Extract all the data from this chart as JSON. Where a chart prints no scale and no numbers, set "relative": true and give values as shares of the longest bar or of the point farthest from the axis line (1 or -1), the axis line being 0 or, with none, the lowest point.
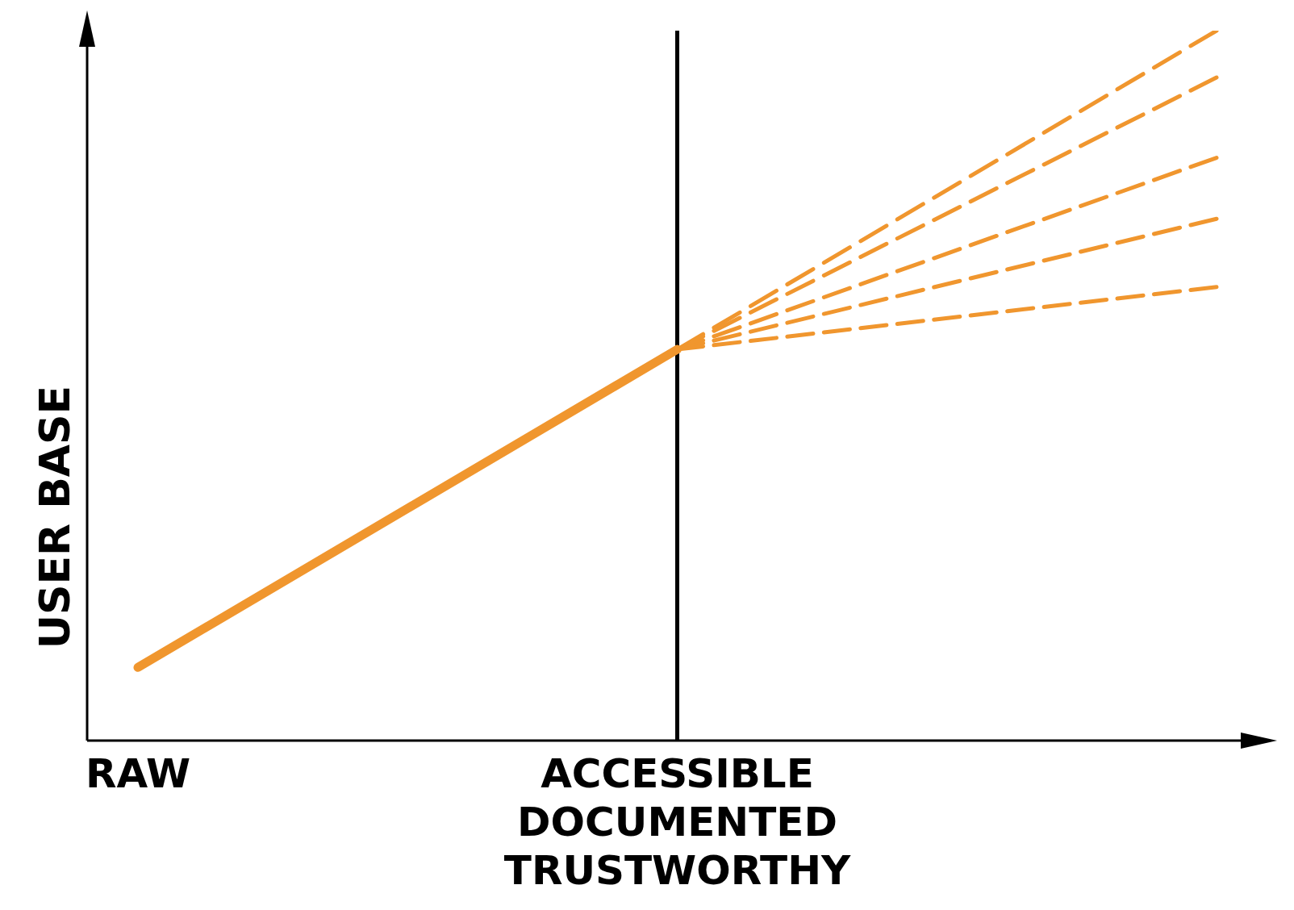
{
  "chart_data": {
    "type": "line",
    "relative": true,
    "ylabel": "USER BASE",
    "categories": [
      "RAW",
      "ACCESSIBLE DOCUMENTED TRUSTWORTHY",
      null
    ],
    "ref_lines": [
      {
        "axis": "x",
        "value": "ACCESSIBLE DOCUMENTED TRUSTWORTHY",
        "color": "#000000"
      }
    ],
    "series": [
      {
        "color": "#f0962e",
        "line_style": "solid",
        "values": [
          0.103,
          0.551,
          null
        ]
      },
      {
        "color": "#f0962e",
        "line_style": "dashed",
        "values": [
          null,
          0.551,
          1
        ]
      },
      {
        "color": "#f0962e",
        "line_style": "dashed",
        "values": [
          null,
          0.551,
          0.934
        ]
      },
      {
        "color": "#f0962e",
        "line_style": "dashed",
        "values": [
          null,
          0.551,
          0.821
        ]
      },
      {
        "color": "#f0962e",
        "line_style": "dashed",
        "values": [
          null,
          0.551,
          0.735
        ]
      },
      {
        "color": "#f0962e",
        "line_style": "dashed",
        "values": [
          null,
          0.551,
          0.639
        ]
      }
    ]
  }
}
